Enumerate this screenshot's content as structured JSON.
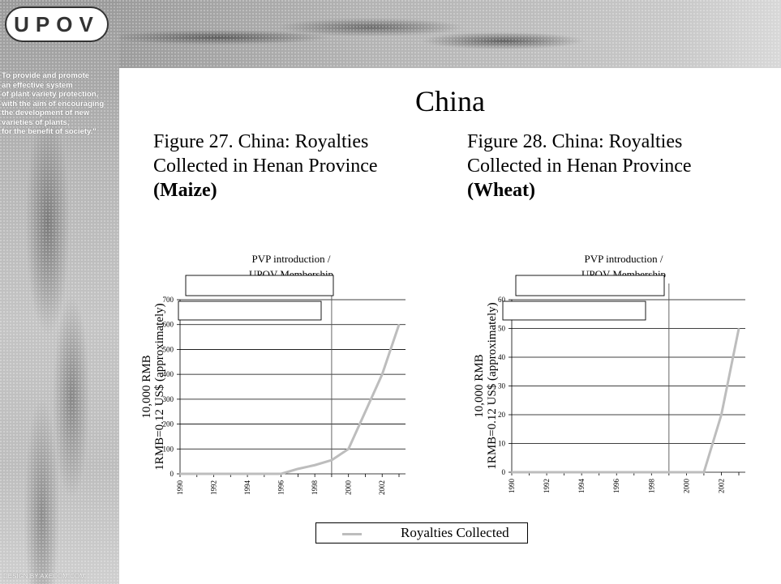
{
  "logo": {
    "text": "UPOV"
  },
  "mission": {
    "lines": [
      "To provide and promote",
      "an effective system",
      "of plant variety protection,",
      "with the aim of encouraging",
      "the development of new",
      "varieties of plants,",
      "for the benefit of society.\""
    ]
  },
  "footer": {
    "credit": "DESIGN BY AXECOM.COM"
  },
  "slide_title": "China",
  "figures": [
    {
      "title_line1": "Figure 27. China: Royalties",
      "title_line2": "Collected in Henan Province",
      "crop": "(Maize)"
    },
    {
      "title_line1": "Figure 28. China: Royalties",
      "title_line2": "Collected in Henan Province",
      "crop": "(Wheat)"
    }
  ],
  "legend": {
    "label": "Royalties Collected"
  },
  "chart_data": [
    {
      "type": "line",
      "ylabel_line1": "10,000 RMB",
      "ylabel_line2": "1RMB=0.12 US$ (approximately)",
      "annotation_line1": "PVP introduction /",
      "annotation_line2": "UPOV Membership",
      "annotation_x": 1999,
      "xlim": [
        1990,
        2003
      ],
      "x_ticks": [
        1990,
        1992,
        1994,
        1996,
        1998,
        2000,
        2002
      ],
      "ylim": [
        0,
        700
      ],
      "y_ticks": [
        0,
        100,
        200,
        300,
        400,
        500,
        600,
        700
      ],
      "series": [
        {
          "name": "Royalties Collected",
          "color": "#bdbdbd",
          "x": [
            1990,
            1991,
            1992,
            1993,
            1994,
            1995,
            1996,
            1997,
            1998,
            1999,
            2000,
            2001,
            2002,
            2003
          ],
          "y": [
            0,
            0,
            0,
            0,
            0,
            0,
            0,
            20,
            35,
            55,
            100,
            250,
            400,
            600
          ]
        }
      ]
    },
    {
      "type": "line",
      "ylabel_line1": "10,000 RMB",
      "ylabel_line2": "1RMB=0.12 US$ (approximately)",
      "annotation_line1": "PVP introduction /",
      "annotation_line2": "UPOV Membership",
      "annotation_x": 1999,
      "xlim": [
        1990,
        2003
      ],
      "x_ticks": [
        1990,
        1992,
        1994,
        1996,
        1998,
        2000,
        2002
      ],
      "ylim": [
        0,
        60
      ],
      "y_ticks": [
        0,
        10,
        20,
        30,
        40,
        50,
        60
      ],
      "series": [
        {
          "name": "Royalties Collected",
          "color": "#bdbdbd",
          "x": [
            1990,
            1991,
            1992,
            1993,
            1994,
            1995,
            1996,
            1997,
            1998,
            1999,
            2000,
            2001,
            2002,
            2003
          ],
          "y": [
            0,
            0,
            0,
            0,
            0,
            0,
            0,
            0,
            0,
            0,
            0,
            0,
            20,
            50
          ]
        }
      ]
    }
  ]
}
